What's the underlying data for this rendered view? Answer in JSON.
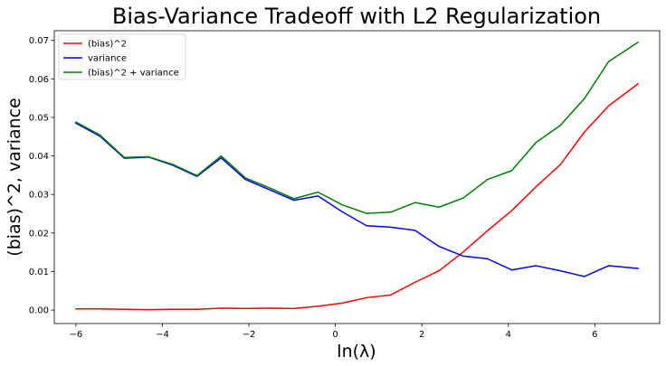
{
  "chart_data": {
    "type": "line",
    "title": "Bias-Variance Tradeoff with L2 Regularization",
    "xlabel": "ln(λ)",
    "ylabel": "(bias)^2, variance",
    "xlim": [
      -6.5,
      7.5
    ],
    "ylim": [
      -0.0035,
      0.0725
    ],
    "xticks": [
      -6,
      -4,
      -2,
      0,
      2,
      4,
      6
    ],
    "xtick_labels": [
      "−6",
      "−4",
      "−2",
      "0",
      "2",
      "4",
      "6"
    ],
    "yticks": [
      0.0,
      0.01,
      0.02,
      0.03,
      0.04,
      0.05,
      0.06,
      0.07
    ],
    "ytick_labels": [
      "0.00",
      "0.01",
      "0.02",
      "0.03",
      "0.04",
      "0.05",
      "0.06",
      "0.07"
    ],
    "grid": false,
    "legend_position": "top-left",
    "x": [
      -6.0,
      -5.44,
      -4.88,
      -4.32,
      -3.76,
      -3.2,
      -2.64,
      -2.08,
      -1.52,
      -0.96,
      -0.4,
      0.16,
      0.72,
      1.28,
      1.84,
      2.4,
      2.96,
      3.52,
      4.08,
      4.64,
      5.2,
      5.76,
      6.32,
      7.0
    ],
    "series": [
      {
        "name": "(bias)^2",
        "color": "#ff0000",
        "values": [
          0.0003,
          0.0003,
          0.0002,
          0.0001,
          0.0002,
          0.0002,
          0.0005,
          0.0004,
          0.0005,
          0.0004,
          0.001,
          0.0018,
          0.0032,
          0.0039,
          0.0072,
          0.0102,
          0.0151,
          0.0206,
          0.0258,
          0.032,
          0.0377,
          0.0462,
          0.053,
          0.0587
        ]
      },
      {
        "name": "variance",
        "color": "#0000ff",
        "values": [
          0.0485,
          0.0451,
          0.0394,
          0.0397,
          0.0376,
          0.0347,
          0.0395,
          0.0339,
          0.0312,
          0.0285,
          0.0296,
          0.0255,
          0.0219,
          0.0215,
          0.0207,
          0.0165,
          0.014,
          0.0133,
          0.0104,
          0.0115,
          0.0102,
          0.0087,
          0.0115,
          0.0108
        ]
      },
      {
        "name": "(bias)^2 + variance",
        "color": "#008000",
        "values": [
          0.0488,
          0.0454,
          0.0396,
          0.0398,
          0.0378,
          0.0349,
          0.04,
          0.0343,
          0.0317,
          0.0289,
          0.0306,
          0.0273,
          0.0251,
          0.0254,
          0.0279,
          0.0267,
          0.0291,
          0.0339,
          0.0362,
          0.0435,
          0.0479,
          0.0549,
          0.0645,
          0.0695
        ]
      }
    ]
  }
}
